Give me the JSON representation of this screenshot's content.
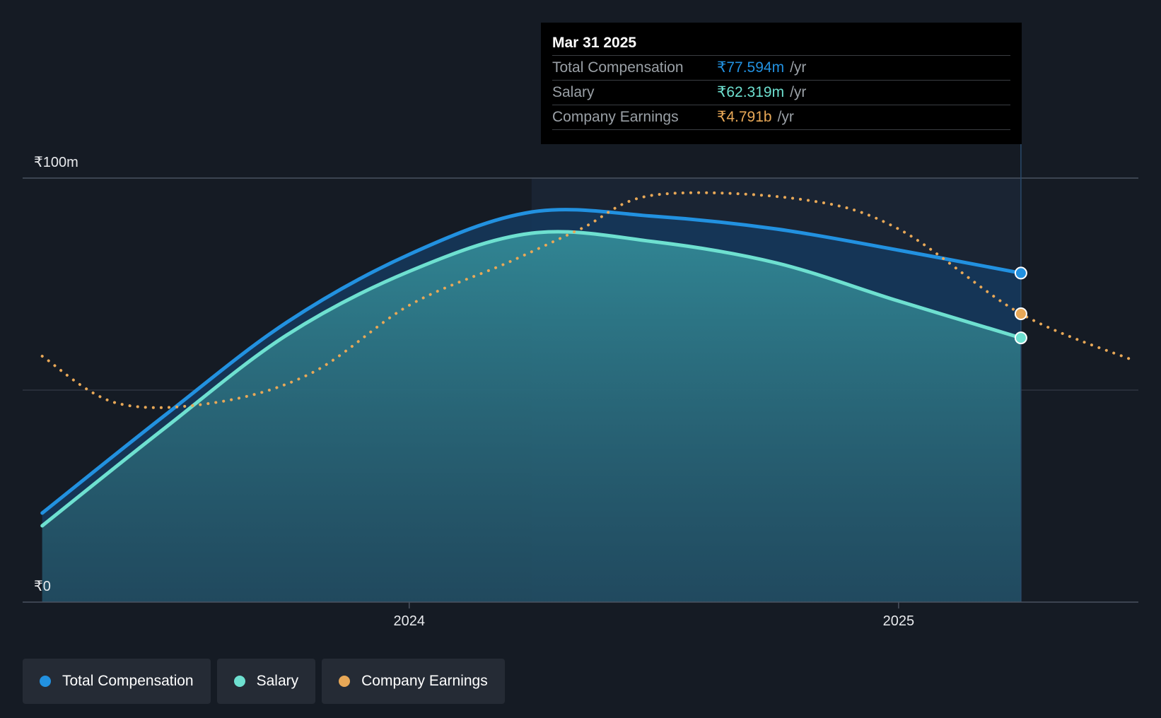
{
  "chart_data": {
    "type": "line",
    "currency_prefix": "₹",
    "y_ticks": [
      {
        "value": 0,
        "label": "₹0"
      },
      {
        "value": 100,
        "label": "₹100m"
      }
    ],
    "ylim": [
      0,
      100
    ],
    "x_ticks": [
      {
        "value": 2024.0,
        "label": "2024"
      },
      {
        "value": 2025.0,
        "label": "2025"
      }
    ],
    "xlim": [
      2023.21,
      2025.49
    ],
    "highlight_start": 2024.25,
    "series": [
      {
        "name": "Total Compensation",
        "color": "#2291e0",
        "style": "solid",
        "x": [
          2023.25,
          2023.5,
          2023.75,
          2024.0,
          2024.25,
          2024.5,
          2024.75,
          2025.0,
          2025.25
        ],
        "y": [
          21,
          44,
          66,
          82,
          92,
          91,
          88,
          83,
          77.594
        ]
      },
      {
        "name": "Salary",
        "color": "#6ee0d0",
        "style": "solid",
        "x": [
          2023.25,
          2023.5,
          2023.75,
          2024.0,
          2024.25,
          2024.5,
          2024.75,
          2025.0,
          2025.25
        ],
        "y": [
          18,
          41,
          63,
          78,
          87,
          85,
          80,
          71,
          62.319
        ]
      },
      {
        "name": "Company Earnings",
        "color": "#e8a857",
        "style": "dotted",
        "note": "plotted on independent scale",
        "x": [
          2023.25,
          2023.4,
          2023.6,
          2023.8,
          2024.0,
          2024.2,
          2024.35,
          2024.5,
          2024.8,
          2025.0,
          2025.25,
          2025.48
        ],
        "y": [
          58,
          47,
          47,
          54,
          70,
          80,
          88,
          96,
          95,
          88,
          68,
          57
        ]
      }
    ],
    "tooltip": {
      "date": "Mar 31 2025",
      "x": 2025.25,
      "rows": [
        {
          "name": "Total Compensation",
          "value": "₹77.594m",
          "unit": "/yr",
          "color": "#2291e0"
        },
        {
          "name": "Salary",
          "value": "₹62.319m",
          "unit": "/yr",
          "color": "#6ee0d0"
        },
        {
          "name": "Company Earnings",
          "value": "₹4.791b",
          "unit": "/yr",
          "color": "#e8a857"
        }
      ]
    }
  },
  "legend": {
    "items": [
      {
        "label": "Total Compensation",
        "color": "#2291e0"
      },
      {
        "label": "Salary",
        "color": "#6ee0d0"
      },
      {
        "label": "Company Earnings",
        "color": "#e8a857"
      }
    ]
  }
}
